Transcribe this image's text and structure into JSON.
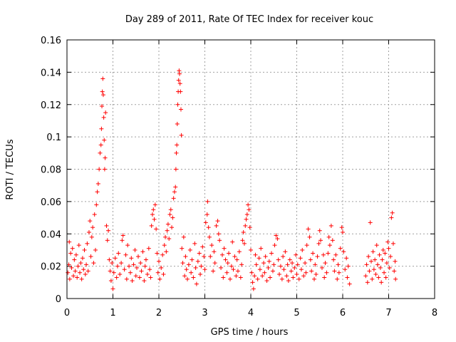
{
  "chart_data": {
    "type": "scatter",
    "title": "Day 289 of 2011, Rate Of TEC Index for receiver kouc",
    "xlabel": "GPS time / hours",
    "ylabel": "ROTI / TECUs",
    "xlim": [
      0,
      8
    ],
    "ylim": [
      0,
      0.16
    ],
    "xticks": [
      0,
      1,
      2,
      3,
      4,
      5,
      6,
      7,
      8
    ],
    "yticks": [
      0,
      0.02,
      0.04,
      0.06,
      0.08,
      0.1,
      0.12,
      0.14,
      0.16
    ],
    "ytick_labels": [
      "0",
      "0.02",
      "0.04",
      "0.06",
      "0.08",
      "0.1",
      "0.12",
      "0.14",
      "0.16"
    ],
    "xtick_labels": [
      "0",
      "1",
      "2",
      "3",
      "4",
      "5",
      "6",
      "7",
      "8"
    ],
    "grid": true,
    "marker": "+",
    "color": "#ff0000",
    "series": [
      {
        "name": "ROTI",
        "points": [
          [
            0.02,
            0.016
          ],
          [
            0.04,
            0.021
          ],
          [
            0.05,
            0.035
          ],
          [
            0.06,
            0.012
          ],
          [
            0.08,
            0.028
          ],
          [
            0.1,
            0.019
          ],
          [
            0.12,
            0.031
          ],
          [
            0.14,
            0.014
          ],
          [
            0.16,
            0.024
          ],
          [
            0.18,
            0.017
          ],
          [
            0.2,
            0.027
          ],
          [
            0.22,
            0.013
          ],
          [
            0.24,
            0.02
          ],
          [
            0.26,
            0.033
          ],
          [
            0.28,
            0.016
          ],
          [
            0.3,
            0.022
          ],
          [
            0.32,
            0.012
          ],
          [
            0.34,
            0.025
          ],
          [
            0.36,
            0.018
          ],
          [
            0.38,
            0.03
          ],
          [
            0.4,
            0.015
          ],
          [
            0.42,
            0.021
          ],
          [
            0.44,
            0.034
          ],
          [
            0.46,
            0.017
          ],
          [
            0.48,
            0.041
          ],
          [
            0.5,
            0.048
          ],
          [
            0.52,
            0.026
          ],
          [
            0.54,
            0.038
          ],
          [
            0.56,
            0.044
          ],
          [
            0.58,
            0.022
          ],
          [
            0.6,
            0.052
          ],
          [
            0.62,
            0.03
          ],
          [
            0.64,
            0.058
          ],
          [
            0.66,
            0.066
          ],
          [
            0.68,
            0.071
          ],
          [
            0.7,
            0.08
          ],
          [
            0.72,
            0.09
          ],
          [
            0.74,
            0.095
          ],
          [
            0.75,
            0.105
          ],
          [
            0.76,
            0.119
          ],
          [
            0.77,
            0.128
          ],
          [
            0.78,
            0.136
          ],
          [
            0.79,
            0.126
          ],
          [
            0.8,
            0.112
          ],
          [
            0.81,
            0.098
          ],
          [
            0.82,
            0.08
          ],
          [
            0.83,
            0.087
          ],
          [
            0.84,
            0.115
          ],
          [
            0.86,
            0.045
          ],
          [
            0.88,
            0.036
          ],
          [
            0.9,
            0.042
          ],
          [
            0.92,
            0.024
          ],
          [
            0.94,
            0.017
          ],
          [
            0.96,
            0.011
          ],
          [
            0.98,
            0.022
          ],
          [
            1.0,
            0.006
          ],
          [
            1.02,
            0.016
          ],
          [
            1.05,
            0.025
          ],
          [
            1.08,
            0.013
          ],
          [
            1.1,
            0.02
          ],
          [
            1.12,
            0.028
          ],
          [
            1.15,
            0.015
          ],
          [
            1.18,
            0.022
          ],
          [
            1.2,
            0.036
          ],
          [
            1.22,
            0.039
          ],
          [
            1.25,
            0.018
          ],
          [
            1.28,
            0.027
          ],
          [
            1.3,
            0.012
          ],
          [
            1.32,
            0.033
          ],
          [
            1.35,
            0.02
          ],
          [
            1.38,
            0.016
          ],
          [
            1.4,
            0.025
          ],
          [
            1.42,
            0.011
          ],
          [
            1.45,
            0.021
          ],
          [
            1.48,
            0.03
          ],
          [
            1.5,
            0.014
          ],
          [
            1.52,
            0.019
          ],
          [
            1.55,
            0.026
          ],
          [
            1.58,
            0.013
          ],
          [
            1.6,
            0.022
          ],
          [
            1.62,
            0.017
          ],
          [
            1.65,
            0.029
          ],
          [
            1.68,
            0.011
          ],
          [
            1.7,
            0.02
          ],
          [
            1.72,
            0.024
          ],
          [
            1.75,
            0.015
          ],
          [
            1.78,
            0.031
          ],
          [
            1.8,
            0.018
          ],
          [
            1.82,
            0.013
          ],
          [
            1.84,
            0.045
          ],
          [
            1.86,
            0.052
          ],
          [
            1.88,
            0.055
          ],
          [
            1.9,
            0.049
          ],
          [
            1.92,
            0.058
          ],
          [
            1.94,
            0.043
          ],
          [
            1.96,
            0.028
          ],
          [
            1.98,
            0.016
          ],
          [
            2.0,
            0.023
          ],
          [
            2.02,
            0.012
          ],
          [
            2.05,
            0.019
          ],
          [
            2.08,
            0.027
          ],
          [
            2.1,
            0.015
          ],
          [
            2.12,
            0.033
          ],
          [
            2.14,
            0.038
          ],
          [
            2.16,
            0.029
          ],
          [
            2.18,
            0.042
          ],
          [
            2.2,
            0.046
          ],
          [
            2.22,
            0.037
          ],
          [
            2.24,
            0.052
          ],
          [
            2.26,
            0.055
          ],
          [
            2.28,
            0.044
          ],
          [
            2.3,
            0.05
          ],
          [
            2.32,
            0.062
          ],
          [
            2.34,
            0.066
          ],
          [
            2.36,
            0.069
          ],
          [
            2.37,
            0.08
          ],
          [
            2.38,
            0.09
          ],
          [
            2.39,
            0.095
          ],
          [
            2.4,
            0.108
          ],
          [
            2.41,
            0.12
          ],
          [
            2.42,
            0.128
          ],
          [
            2.43,
            0.135
          ],
          [
            2.44,
            0.141
          ],
          [
            2.45,
            0.139
          ],
          [
            2.46,
            0.133
          ],
          [
            2.47,
            0.128
          ],
          [
            2.48,
            0.117
          ],
          [
            2.49,
            0.101
          ],
          [
            2.5,
            0.031
          ],
          [
            2.52,
            0.022
          ],
          [
            2.54,
            0.038
          ],
          [
            2.56,
            0.014
          ],
          [
            2.58,
            0.026
          ],
          [
            2.6,
            0.018
          ],
          [
            2.62,
            0.012
          ],
          [
            2.65,
            0.021
          ],
          [
            2.68,
            0.03
          ],
          [
            2.7,
            0.016
          ],
          [
            2.72,
            0.024
          ],
          [
            2.75,
            0.013
          ],
          [
            2.78,
            0.034
          ],
          [
            2.8,
            0.019
          ],
          [
            2.82,
            0.009
          ],
          [
            2.85,
            0.023
          ],
          [
            2.88,
            0.028
          ],
          [
            2.9,
            0.015
          ],
          [
            2.92,
            0.02
          ],
          [
            2.95,
            0.032
          ],
          [
            2.98,
            0.026
          ],
          [
            3.0,
            0.018
          ],
          [
            3.02,
            0.047
          ],
          [
            3.05,
            0.052
          ],
          [
            3.06,
            0.06
          ],
          [
            3.08,
            0.044
          ],
          [
            3.1,
            0.038
          ],
          [
            3.12,
            0.026
          ],
          [
            3.15,
            0.033
          ],
          [
            3.18,
            0.017
          ],
          [
            3.2,
            0.029
          ],
          [
            3.22,
            0.022
          ],
          [
            3.25,
            0.045
          ],
          [
            3.28,
            0.048
          ],
          [
            3.3,
            0.04
          ],
          [
            3.32,
            0.036
          ],
          [
            3.35,
            0.019
          ],
          [
            3.38,
            0.027
          ],
          [
            3.4,
            0.013
          ],
          [
            3.42,
            0.031
          ],
          [
            3.45,
            0.024
          ],
          [
            3.48,
            0.016
          ],
          [
            3.5,
            0.022
          ],
          [
            3.52,
            0.028
          ],
          [
            3.55,
            0.012
          ],
          [
            3.58,
            0.02
          ],
          [
            3.6,
            0.035
          ],
          [
            3.62,
            0.018
          ],
          [
            3.65,
            0.026
          ],
          [
            3.68,
            0.014
          ],
          [
            3.7,
            0.024
          ],
          [
            3.72,
            0.017
          ],
          [
            3.75,
            0.029
          ],
          [
            3.78,
            0.013
          ],
          [
            3.8,
            0.021
          ],
          [
            3.82,
            0.036
          ],
          [
            3.84,
            0.041
          ],
          [
            3.86,
            0.034
          ],
          [
            3.88,
            0.045
          ],
          [
            3.9,
            0.049
          ],
          [
            3.92,
            0.052
          ],
          [
            3.94,
            0.058
          ],
          [
            3.96,
            0.055
          ],
          [
            3.98,
            0.044
          ],
          [
            4.0,
            0.03
          ],
          [
            4.02,
            0.016
          ],
          [
            4.04,
            0.01
          ],
          [
            4.06,
            0.006
          ],
          [
            4.08,
            0.014
          ],
          [
            4.1,
            0.027
          ],
          [
            4.12,
            0.021
          ],
          [
            4.15,
            0.012
          ],
          [
            4.18,
            0.025
          ],
          [
            4.2,
            0.018
          ],
          [
            4.22,
            0.031
          ],
          [
            4.25,
            0.014
          ],
          [
            4.28,
            0.022
          ],
          [
            4.3,
            0.016
          ],
          [
            4.32,
            0.026
          ],
          [
            4.35,
            0.011
          ],
          [
            4.38,
            0.019
          ],
          [
            4.4,
            0.023
          ],
          [
            4.42,
            0.013
          ],
          [
            4.45,
            0.028
          ],
          [
            4.48,
            0.017
          ],
          [
            4.5,
            0.021
          ],
          [
            4.52,
            0.033
          ],
          [
            4.55,
            0.039
          ],
          [
            4.58,
            0.037
          ],
          [
            4.6,
            0.024
          ],
          [
            4.62,
            0.015
          ],
          [
            4.65,
            0.02
          ],
          [
            4.68,
            0.012
          ],
          [
            4.7,
            0.026
          ],
          [
            4.72,
            0.018
          ],
          [
            4.75,
            0.029
          ],
          [
            4.78,
            0.014
          ],
          [
            4.8,
            0.021
          ],
          [
            4.82,
            0.011
          ],
          [
            4.85,
            0.024
          ],
          [
            4.88,
            0.017
          ],
          [
            4.9,
            0.022
          ],
          [
            4.92,
            0.013
          ],
          [
            4.95,
            0.019
          ],
          [
            4.98,
            0.027
          ],
          [
            5.0,
            0.015
          ],
          [
            5.02,
            0.021
          ],
          [
            5.05,
            0.012
          ],
          [
            5.08,
            0.025
          ],
          [
            5.1,
            0.018
          ],
          [
            5.12,
            0.03
          ],
          [
            5.15,
            0.014
          ],
          [
            5.18,
            0.022
          ],
          [
            5.2,
            0.016
          ],
          [
            5.22,
            0.033
          ],
          [
            5.25,
            0.043
          ],
          [
            5.28,
            0.038
          ],
          [
            5.3,
            0.024
          ],
          [
            5.32,
            0.017
          ],
          [
            5.35,
            0.028
          ],
          [
            5.38,
            0.012
          ],
          [
            5.4,
            0.021
          ],
          [
            5.42,
            0.015
          ],
          [
            5.45,
            0.026
          ],
          [
            5.48,
            0.034
          ],
          [
            5.5,
            0.042
          ],
          [
            5.52,
            0.036
          ],
          [
            5.55,
            0.019
          ],
          [
            5.58,
            0.027
          ],
          [
            5.6,
            0.013
          ],
          [
            5.62,
            0.022
          ],
          [
            5.65,
            0.016
          ],
          [
            5.68,
            0.028
          ],
          [
            5.7,
            0.038
          ],
          [
            5.72,
            0.033
          ],
          [
            5.75,
            0.045
          ],
          [
            5.78,
            0.036
          ],
          [
            5.8,
            0.024
          ],
          [
            5.82,
            0.017
          ],
          [
            5.85,
            0.027
          ],
          [
            5.88,
            0.012
          ],
          [
            5.9,
            0.021
          ],
          [
            5.92,
            0.016
          ],
          [
            5.95,
            0.031
          ],
          [
            5.98,
            0.044
          ],
          [
            6.0,
            0.041
          ],
          [
            6.02,
            0.029
          ],
          [
            6.05,
            0.018
          ],
          [
            6.08,
            0.025
          ],
          [
            6.1,
            0.013
          ],
          [
            6.12,
            0.02
          ],
          [
            6.15,
            0.009
          ],
          [
            6.5,
            0.014
          ],
          [
            6.52,
            0.021
          ],
          [
            6.54,
            0.01
          ],
          [
            6.56,
            0.026
          ],
          [
            6.58,
            0.017
          ],
          [
            6.6,
            0.047
          ],
          [
            6.62,
            0.023
          ],
          [
            6.64,
            0.012
          ],
          [
            6.66,
            0.029
          ],
          [
            6.68,
            0.018
          ],
          [
            6.7,
            0.024
          ],
          [
            6.72,
            0.015
          ],
          [
            6.74,
            0.033
          ],
          [
            6.76,
            0.021
          ],
          [
            6.78,
            0.013
          ],
          [
            6.8,
            0.027
          ],
          [
            6.82,
            0.019
          ],
          [
            6.84,
            0.01
          ],
          [
            6.86,
            0.024
          ],
          [
            6.88,
            0.03
          ],
          [
            6.9,
            0.016
          ],
          [
            6.92,
            0.028
          ],
          [
            6.94,
            0.013
          ],
          [
            6.96,
            0.022
          ],
          [
            6.98,
            0.035
          ],
          [
            7.0,
            0.031
          ],
          [
            7.02,
            0.019
          ],
          [
            7.04,
            0.026
          ],
          [
            7.06,
            0.05
          ],
          [
            7.08,
            0.053
          ],
          [
            7.1,
            0.034
          ],
          [
            7.12,
            0.017
          ],
          [
            7.14,
            0.023
          ],
          [
            7.15,
            0.012
          ]
        ]
      }
    ]
  }
}
